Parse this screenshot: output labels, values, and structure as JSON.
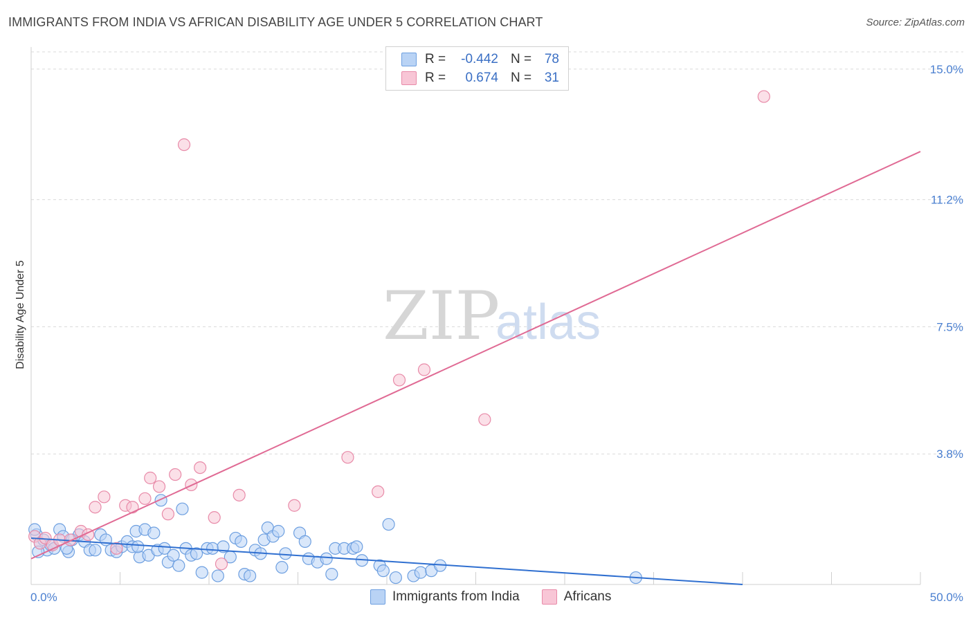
{
  "title": "IMMIGRANTS FROM INDIA VS AFRICAN DISABILITY AGE UNDER 5 CORRELATION CHART",
  "source": "Source: ZipAtlas.com",
  "watermark": {
    "zip": "ZIP",
    "atlas": "atlas"
  },
  "legend": {
    "rows": [
      {
        "r_label": "R =",
        "r_value": "-0.442",
        "n_label": "N =",
        "n_value": "78"
      },
      {
        "r_label": "R =",
        "r_value": " 0.674",
        "n_label": "N =",
        "n_value": "31"
      }
    ]
  },
  "bottom_legend": [
    {
      "label": "Immigrants from India"
    },
    {
      "label": "Africans"
    }
  ],
  "colors": {
    "blue_fill": "#b9d3f5",
    "blue_stroke": "#6d9fe0",
    "blue_line": "#2f6fd0",
    "pink_fill": "#f8c6d6",
    "pink_stroke": "#e88aa8",
    "pink_line": "#e06a94",
    "grid": "#d9d9d9",
    "tick_text": "#4a7fd0"
  },
  "chart_data": {
    "type": "scatter",
    "title": "IMMIGRANTS FROM INDIA VS AFRICAN DISABILITY AGE UNDER 5 CORRELATION CHART",
    "xlabel": "",
    "ylabel": "Disability Age Under 5",
    "xlim": [
      0,
      50
    ],
    "ylim": [
      0,
      15.5
    ],
    "x_tick_labels": [
      "0.0%",
      "50.0%"
    ],
    "y_ticks": [
      3.8,
      7.5,
      11.2,
      15.0
    ],
    "y_tick_labels": [
      "3.8%",
      "7.5%",
      "11.2%",
      "15.0%"
    ],
    "grid": true,
    "legend_position": "top-center",
    "series": [
      {
        "name": "Immigrants from India",
        "color": "blue",
        "r": -0.442,
        "n": 78,
        "trend": {
          "x": [
            0,
            40
          ],
          "y": [
            1.35,
            0.0
          ]
        },
        "points": [
          [
            0.3,
            1.45
          ],
          [
            0.5,
            1.2
          ],
          [
            0.7,
            1.3
          ],
          [
            0.9,
            1.0
          ],
          [
            1.1,
            1.15
          ],
          [
            1.3,
            1.05
          ],
          [
            1.6,
            1.6
          ],
          [
            1.8,
            1.4
          ],
          [
            2.1,
            0.95
          ],
          [
            2.3,
            1.3
          ],
          [
            2.7,
            1.45
          ],
          [
            3.0,
            1.25
          ],
          [
            3.3,
            1.0
          ],
          [
            3.6,
            1.0
          ],
          [
            3.9,
            1.45
          ],
          [
            4.2,
            1.3
          ],
          [
            4.5,
            1.0
          ],
          [
            4.8,
            0.95
          ],
          [
            5.1,
            1.1
          ],
          [
            5.4,
            1.25
          ],
          [
            5.7,
            1.1
          ],
          [
            5.9,
            1.55
          ],
          [
            6.1,
            0.8
          ],
          [
            6.4,
            1.6
          ],
          [
            6.6,
            0.85
          ],
          [
            6.9,
            1.5
          ],
          [
            7.1,
            1.0
          ],
          [
            7.3,
            2.45
          ],
          [
            7.5,
            1.05
          ],
          [
            7.7,
            0.65
          ],
          [
            8.0,
            0.85
          ],
          [
            8.3,
            0.55
          ],
          [
            8.5,
            2.2
          ],
          [
            8.7,
            1.05
          ],
          [
            9.0,
            0.85
          ],
          [
            9.3,
            0.9
          ],
          [
            9.6,
            0.35
          ],
          [
            9.9,
            1.05
          ],
          [
            10.2,
            1.05
          ],
          [
            10.5,
            0.25
          ],
          [
            10.8,
            1.1
          ],
          [
            11.2,
            0.8
          ],
          [
            11.5,
            1.35
          ],
          [
            11.8,
            1.25
          ],
          [
            12.0,
            0.3
          ],
          [
            12.3,
            0.25
          ],
          [
            12.6,
            1.0
          ],
          [
            12.9,
            0.9
          ],
          [
            13.1,
            1.3
          ],
          [
            13.3,
            1.65
          ],
          [
            13.6,
            1.4
          ],
          [
            13.9,
            1.55
          ],
          [
            14.1,
            0.5
          ],
          [
            14.3,
            0.9
          ],
          [
            15.1,
            1.5
          ],
          [
            15.4,
            1.25
          ],
          [
            15.6,
            0.75
          ],
          [
            16.1,
            0.65
          ],
          [
            16.6,
            0.75
          ],
          [
            16.9,
            0.3
          ],
          [
            17.1,
            1.05
          ],
          [
            17.6,
            1.05
          ],
          [
            18.1,
            1.05
          ],
          [
            18.3,
            1.1
          ],
          [
            18.6,
            0.7
          ],
          [
            19.6,
            0.55
          ],
          [
            19.8,
            0.4
          ],
          [
            20.1,
            1.75
          ],
          [
            20.5,
            0.2
          ],
          [
            21.5,
            0.25
          ],
          [
            21.9,
            0.35
          ],
          [
            22.5,
            0.4
          ],
          [
            23.0,
            0.55
          ],
          [
            0.2,
            1.6
          ],
          [
            0.4,
            0.95
          ],
          [
            2.0,
            1.05
          ],
          [
            34.0,
            0.2
          ],
          [
            6.0,
            1.1
          ]
        ]
      },
      {
        "name": "Africans",
        "color": "pink",
        "r": 0.674,
        "n": 31,
        "trend": {
          "x": [
            0,
            50
          ],
          "y": [
            0.75,
            12.6
          ]
        },
        "points": [
          [
            0.2,
            1.4
          ],
          [
            0.5,
            1.2
          ],
          [
            0.8,
            1.35
          ],
          [
            1.2,
            1.15
          ],
          [
            1.6,
            1.3
          ],
          [
            2.2,
            1.3
          ],
          [
            2.8,
            1.55
          ],
          [
            3.2,
            1.45
          ],
          [
            3.6,
            2.25
          ],
          [
            4.1,
            2.55
          ],
          [
            4.8,
            1.05
          ],
          [
            5.3,
            2.3
          ],
          [
            5.7,
            2.25
          ],
          [
            6.4,
            2.5
          ],
          [
            6.7,
            3.1
          ],
          [
            7.2,
            2.85
          ],
          [
            7.7,
            2.05
          ],
          [
            8.1,
            3.2
          ],
          [
            8.6,
            12.8
          ],
          [
            9.0,
            2.9
          ],
          [
            9.5,
            3.4
          ],
          [
            10.3,
            1.95
          ],
          [
            10.7,
            0.6
          ],
          [
            11.7,
            2.6
          ],
          [
            14.8,
            2.3
          ],
          [
            17.8,
            3.7
          ],
          [
            19.5,
            2.7
          ],
          [
            20.7,
            5.95
          ],
          [
            22.1,
            6.25
          ],
          [
            25.5,
            4.8
          ],
          [
            41.2,
            14.2
          ]
        ]
      }
    ]
  }
}
